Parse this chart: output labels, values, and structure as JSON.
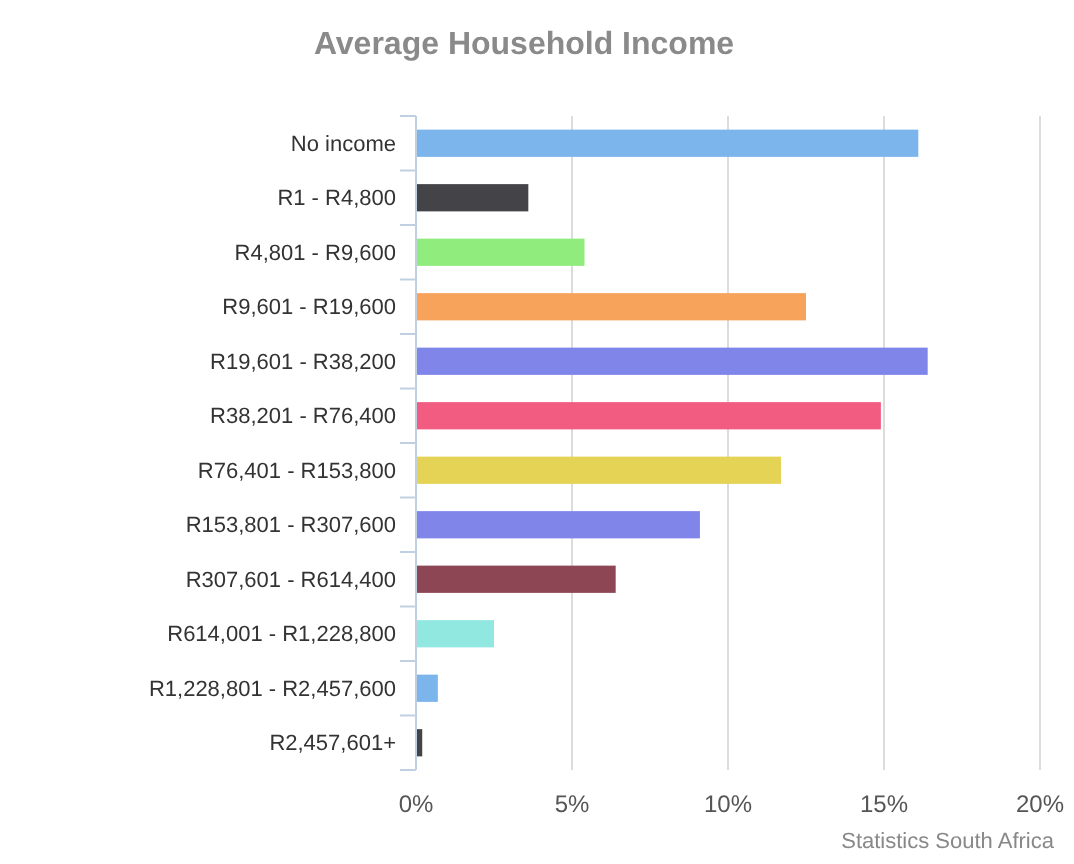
{
  "chart_data": {
    "type": "bar",
    "orientation": "horizontal",
    "title": "Average Household Income",
    "categories": [
      "No income",
      "R1 - R4,800",
      "R4,801 - R9,600",
      "R9,601 - R19,600",
      "R19,601 - R38,200",
      "R38,201 - R76,400",
      "R76,401 - R153,800",
      "R153,801 - R307,600",
      "R307,601 - R614,400",
      "R614,001 - R1,228,800",
      "R1,228,801 - R2,457,600",
      "R2,457,601+"
    ],
    "values": [
      16.1,
      3.6,
      5.4,
      12.5,
      16.4,
      14.9,
      11.7,
      9.1,
      6.4,
      2.5,
      0.7,
      0.2
    ],
    "colors": [
      "#7cb5ec",
      "#434348",
      "#90ed7d",
      "#f7a35c",
      "#8085e9",
      "#f15c80",
      "#e4d354",
      "#8085e9",
      "#8d4653",
      "#91e8e1",
      "#7cb5ec",
      "#434348"
    ],
    "xlim": [
      0,
      20
    ],
    "xticks": [
      {
        "value": 0,
        "label": "0%"
      },
      {
        "value": 5,
        "label": "5%"
      },
      {
        "value": 10,
        "label": "10%"
      },
      {
        "value": 15,
        "label": "15%"
      },
      {
        "value": 20,
        "label": "20%"
      }
    ],
    "grid": "x",
    "annotations": [
      "Statistics South Africa"
    ]
  }
}
